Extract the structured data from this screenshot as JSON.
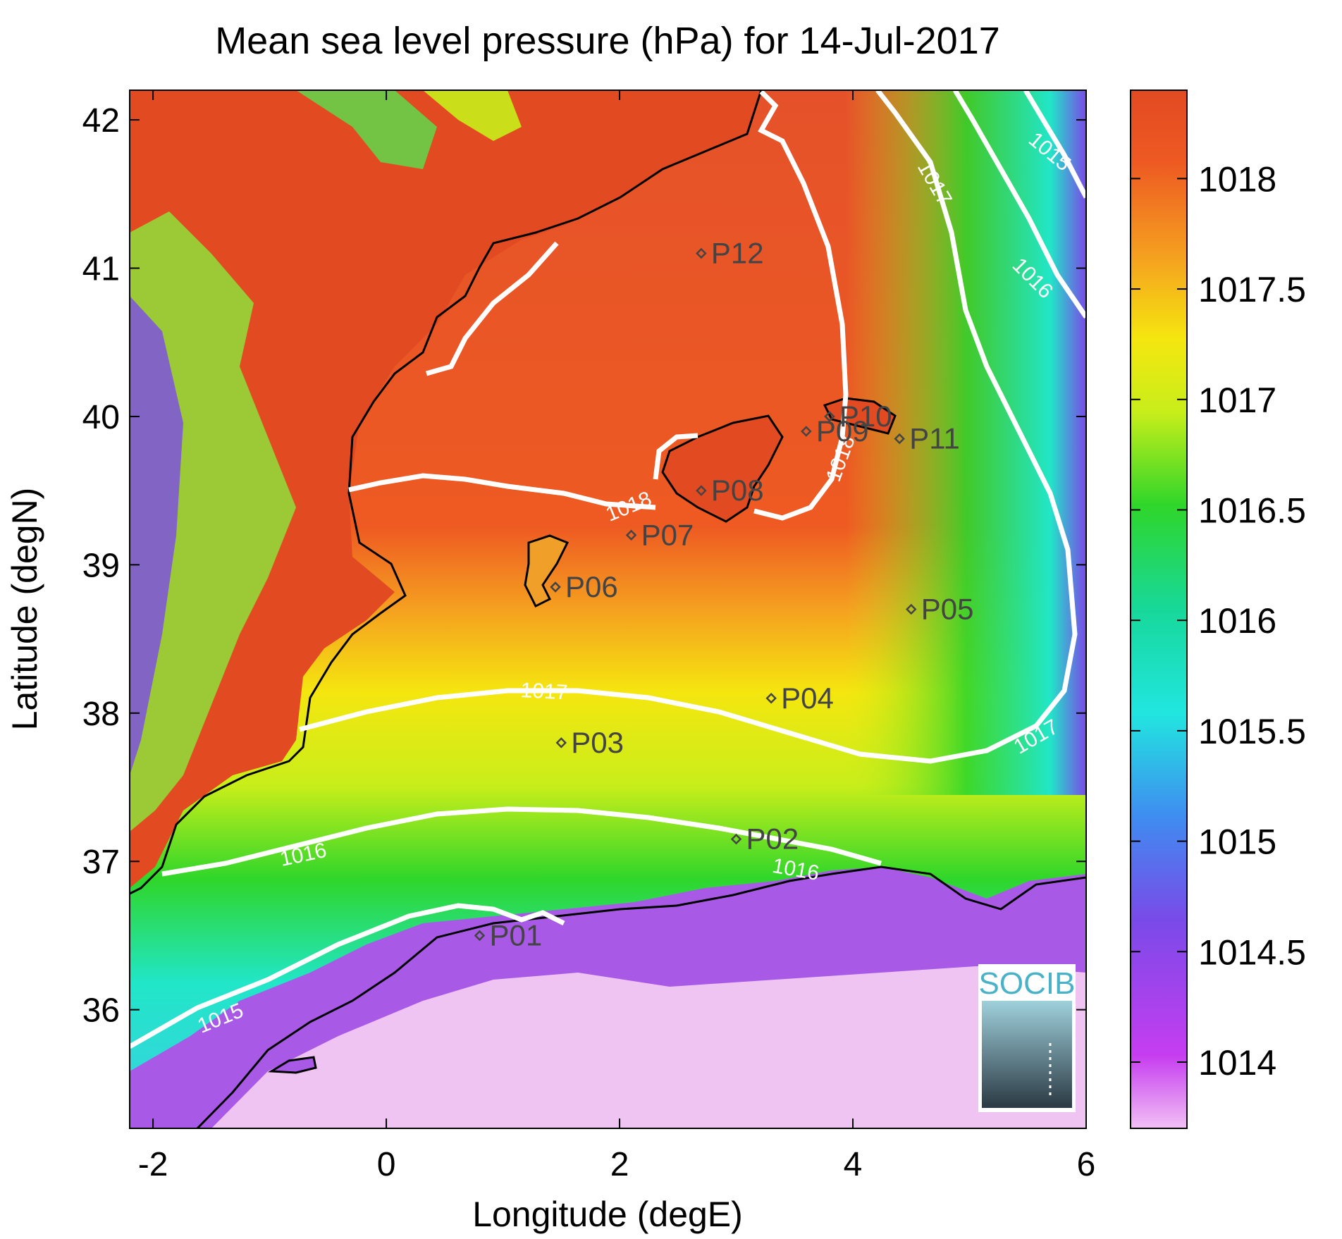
{
  "title": "Mean sea level pressure (hPa) for 14-Jul-2017",
  "xlabel": "Longitude (degE)",
  "ylabel": "Latitude (degN)",
  "x_ticks": [
    "-2",
    "0",
    "2",
    "4",
    "6"
  ],
  "y_ticks": [
    "36",
    "37",
    "38",
    "39",
    "40",
    "41",
    "42"
  ],
  "colorbar": {
    "ticks": [
      "1014",
      "1014.5",
      "1015",
      "1015.5",
      "1016",
      "1016.5",
      "1017",
      "1017.5",
      "1018"
    ],
    "range": [
      1013.7,
      1018.4
    ],
    "colors": [
      "#f2c0f4",
      "#c63df0",
      "#7a4ae8",
      "#3f8cf0",
      "#21e6e0",
      "#17d89a",
      "#2fd62a",
      "#c8ee1a",
      "#f5e60f",
      "#f5a020",
      "#ee5a22",
      "#e24a22"
    ]
  },
  "map": {
    "lon_range": [
      -2.2,
      6.0
    ],
    "lat_range": [
      35.2,
      42.2
    ],
    "field": "mean sea level pressure",
    "units": "hPa"
  },
  "contour_labels": [
    {
      "text": "1015",
      "lon": -1.4,
      "lat": 35.9,
      "angle": -22
    },
    {
      "text": "1016",
      "lon": -0.7,
      "lat": 37.0,
      "angle": -12
    },
    {
      "text": "1016",
      "lon": 3.5,
      "lat": 36.9,
      "angle": 10
    },
    {
      "text": "1017",
      "lon": 1.35,
      "lat": 38.1,
      "angle": 3
    },
    {
      "text": "1017",
      "lon": 5.6,
      "lat": 37.8,
      "angle": -30
    },
    {
      "text": "1017",
      "lon": 4.65,
      "lat": 41.55,
      "angle": 60
    },
    {
      "text": "1016",
      "lon": 5.5,
      "lat": 40.9,
      "angle": 45
    },
    {
      "text": "1015",
      "lon": 5.65,
      "lat": 41.75,
      "angle": 40
    },
    {
      "text": "1018",
      "lon": 2.1,
      "lat": 39.35,
      "angle": -22
    },
    {
      "text": "1018",
      "lon": 3.95,
      "lat": 39.7,
      "angle": -70
    }
  ],
  "stations": [
    {
      "name": "P01",
      "lon": 0.8,
      "lat": 36.5
    },
    {
      "name": "P02",
      "lon": 3.0,
      "lat": 37.15
    },
    {
      "name": "P03",
      "lon": 1.5,
      "lat": 37.8
    },
    {
      "name": "P04",
      "lon": 3.3,
      "lat": 38.1
    },
    {
      "name": "P05",
      "lon": 4.5,
      "lat": 38.7
    },
    {
      "name": "P06",
      "lon": 1.45,
      "lat": 38.85
    },
    {
      "name": "P07",
      "lon": 2.1,
      "lat": 39.2
    },
    {
      "name": "P08",
      "lon": 2.7,
      "lat": 39.5
    },
    {
      "name": "P09",
      "lon": 3.6,
      "lat": 39.9
    },
    {
      "name": "P10",
      "lon": 3.8,
      "lat": 40.0
    },
    {
      "name": "P11",
      "lon": 4.4,
      "lat": 39.85
    },
    {
      "name": "P12",
      "lon": 2.7,
      "lat": 41.1
    }
  ],
  "logo_text": "SOCIB"
}
